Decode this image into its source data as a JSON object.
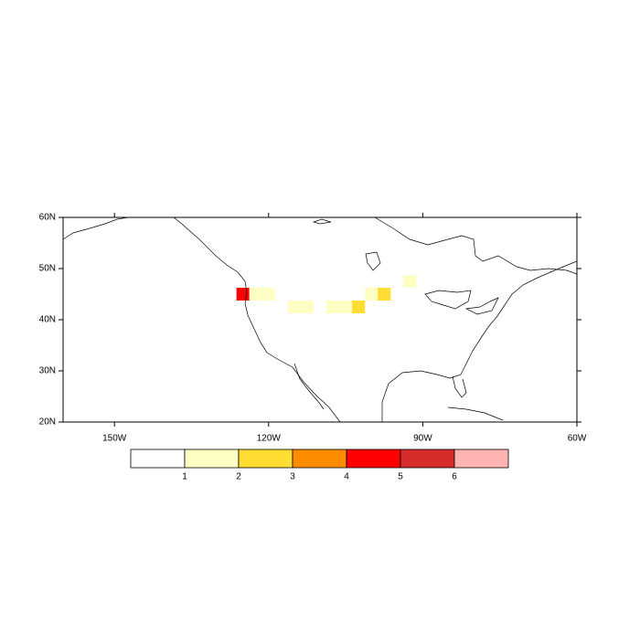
{
  "map": {
    "lon_range": [
      -160,
      -60
    ],
    "lat_range": [
      20,
      60
    ],
    "lon_ticks": [
      {
        "value": -150,
        "label": "150W"
      },
      {
        "value": -120,
        "label": "120W"
      },
      {
        "value": -90,
        "label": "90W"
      },
      {
        "value": -60,
        "label": "60W"
      }
    ],
    "lat_ticks": [
      {
        "value": 20,
        "label": "20N"
      },
      {
        "value": 30,
        "label": "30N"
      },
      {
        "value": 40,
        "label": "40N"
      },
      {
        "value": 50,
        "label": "50N"
      },
      {
        "value": 60,
        "label": "60N"
      }
    ],
    "cells": [
      {
        "lon": -125,
        "lat": 45,
        "value": 4.5
      },
      {
        "lon": -122.5,
        "lat": 45,
        "value": 1.5
      },
      {
        "lon": -120,
        "lat": 45,
        "value": 1.5
      },
      {
        "lon": -115,
        "lat": 42.5,
        "value": 1.5
      },
      {
        "lon": -112.5,
        "lat": 42.5,
        "value": 1.5
      },
      {
        "lon": -107.5,
        "lat": 42.5,
        "value": 1.5
      },
      {
        "lon": -105,
        "lat": 42.5,
        "value": 1.5
      },
      {
        "lon": -102.5,
        "lat": 42.5,
        "value": 2.5
      },
      {
        "lon": -100,
        "lat": 45,
        "value": 1.5
      },
      {
        "lon": -97.5,
        "lat": 45,
        "value": 2.5
      },
      {
        "lon": -92.5,
        "lat": 47.5,
        "value": 1.5
      }
    ],
    "colorbar": {
      "levels": [
        1,
        2,
        3,
        4,
        5,
        6
      ],
      "colors": [
        "#ffffff",
        "#ffffc4",
        "#ffdd33",
        "#ff8c00",
        "#ff0000",
        "#d62c2c",
        "#ffb3b3"
      ]
    }
  }
}
